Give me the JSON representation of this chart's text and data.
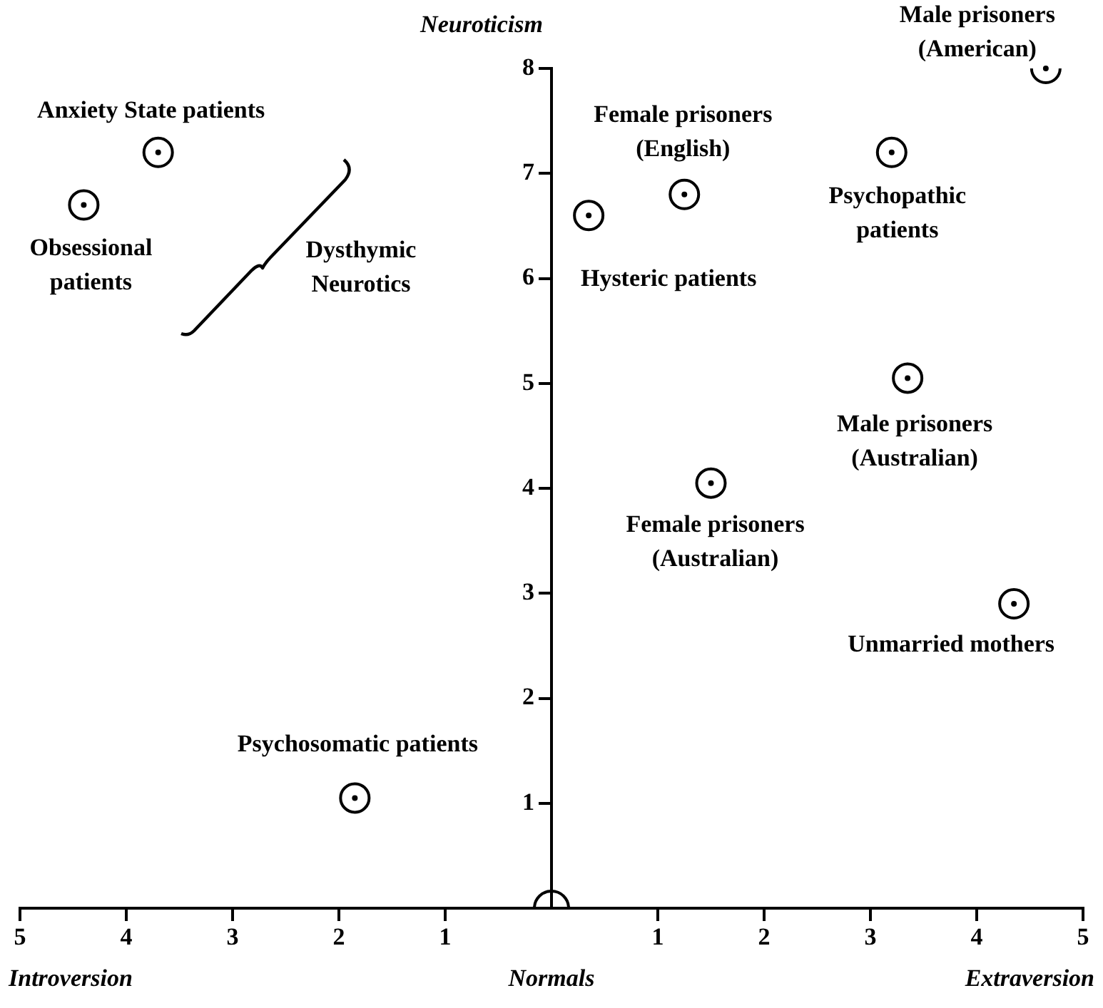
{
  "chart_data": {
    "type": "scatter",
    "ylabel": "Neuroticism",
    "series": [
      {
        "color": "#000000",
        "marker": "circle",
        "x": [
          -3.7,
          -4.4,
          -1.85,
          0.35,
          1.25,
          1.5,
          3.2,
          3.35,
          4.35,
          4.65
        ],
        "values": [
          7.2,
          6.7,
          1.05,
          6.6,
          6.8,
          4.05,
          7.2,
          5.05,
          2.9,
          8.0
        ]
      },
      {
        "color": "#000000",
        "marker": "circle",
        "x": [
          0
        ],
        "values": [
          0
        ]
      }
    ],
    "xlim": [
      -5,
      5
    ],
    "ylim": [
      0,
      8
    ],
    "xticks": [
      {
        "value": -5,
        "label": "5"
      },
      {
        "value": -4,
        "label": "4"
      },
      {
        "value": -3,
        "label": "3"
      },
      {
        "value": -2,
        "label": "2"
      },
      {
        "value": -1,
        "label": "1"
      },
      1,
      2,
      3,
      4,
      5
    ],
    "yticks": [
      1,
      2,
      3,
      4,
      5,
      6,
      7,
      8
    ],
    "grid": false,
    "legend": false,
    "annotations": [
      {
        "text": "Anxiety State patients",
        "x": -3.7,
        "y": 7.2
      },
      {
        "text": "Obsessional\npatients",
        "x": -4.4,
        "y": 6.7
      },
      {
        "text": "Psychosomatic patients",
        "x": -1.85,
        "y": 1.05
      },
      {
        "text": "Hysteric patients",
        "x": 0.35,
        "y": 6.6
      },
      {
        "text": "Female prisoners\n(English)",
        "x": 1.25,
        "y": 6.8
      },
      {
        "text": "Female prisoners\n(Australian)",
        "x": 1.5,
        "y": 4.05
      },
      {
        "text": "Psychopathic\npatients",
        "x": 3.2,
        "y": 7.2
      },
      {
        "text": "Male prisoners\n(Australian)",
        "x": 3.35,
        "y": 5.05
      },
      {
        "text": "Unmarried mothers",
        "x": 4.35,
        "y": 2.9
      },
      {
        "text": "Male prisoners\n(American)",
        "x": 4.65,
        "y": 8.0
      },
      "Dysthymic\nNeurotics",
      "Introversion",
      "Normals",
      "Extraversion"
    ]
  }
}
